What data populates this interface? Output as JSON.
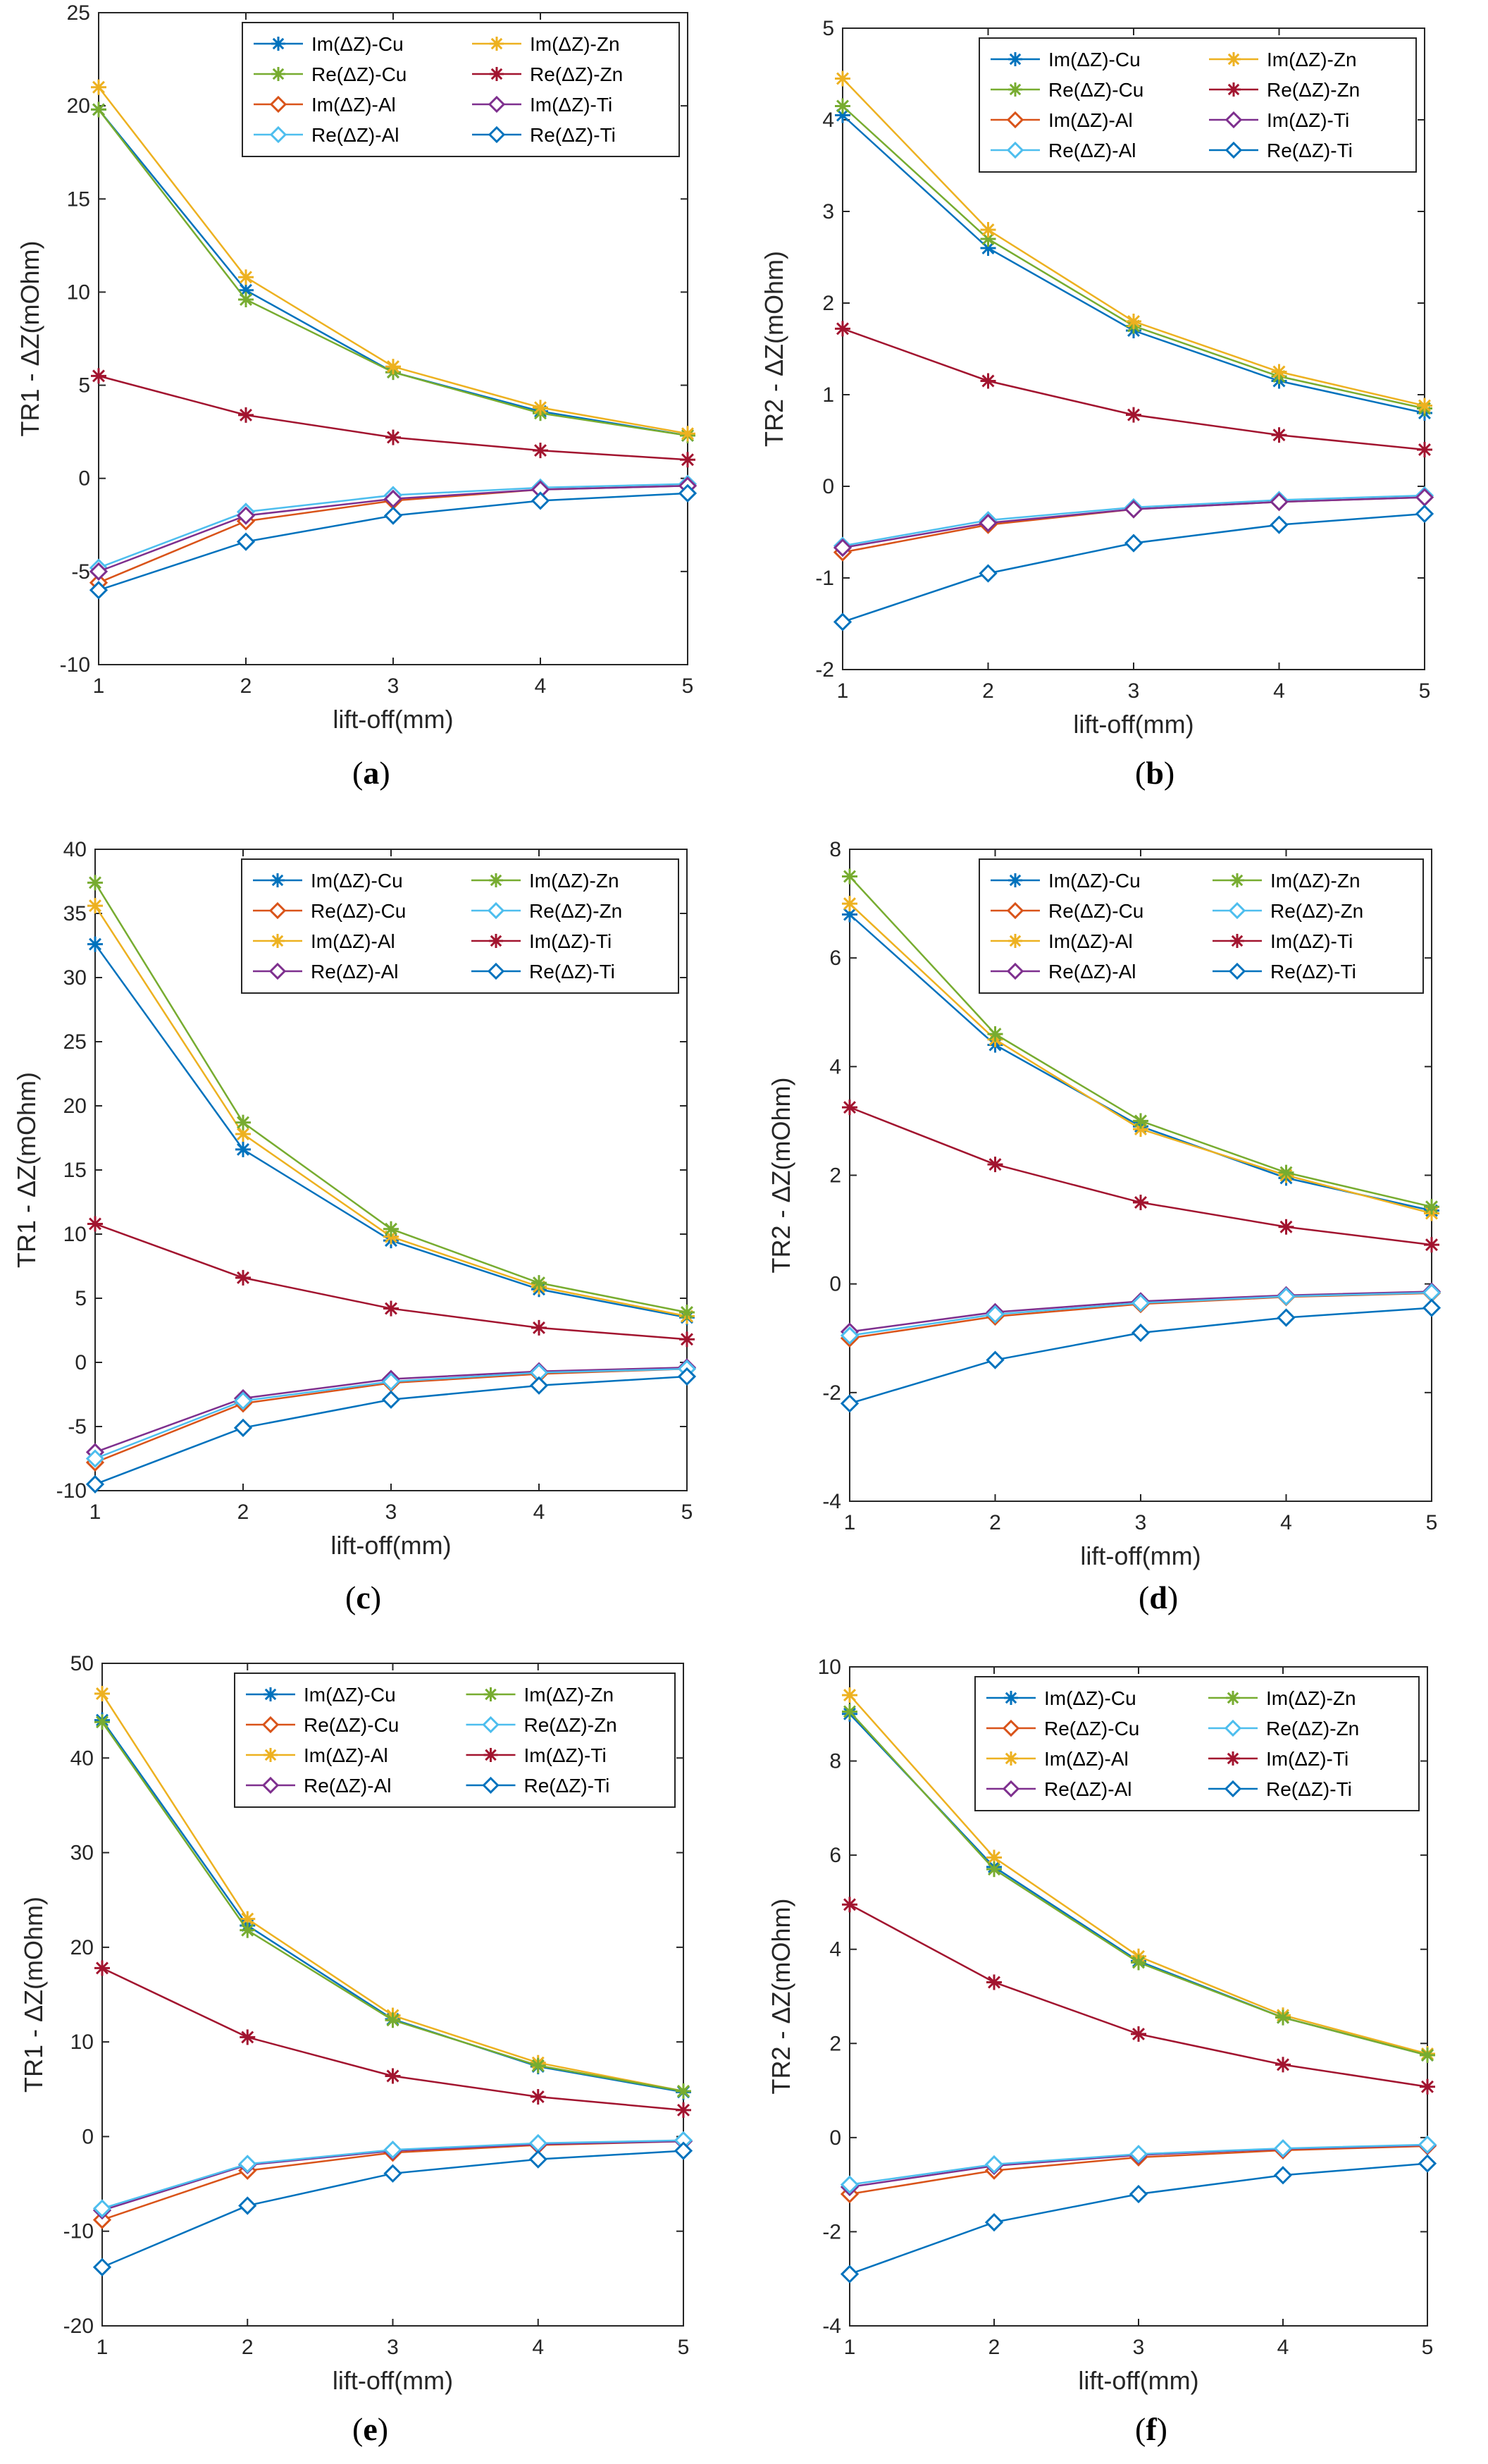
{
  "colors": {
    "c1": "#0072BD",
    "c2": "#D95319",
    "c3": "#EDB120",
    "c4": "#7E2F8E",
    "c5": "#77AC30",
    "c6": "#4DBEEE",
    "c7": "#A2142F"
  },
  "chart_data": [
    {
      "type": "line",
      "caption": "a",
      "ylabel": "TR1 - ΔZ(mOhm)",
      "xlabel": "lift-off(mm)",
      "x": [
        1,
        2,
        3,
        4,
        5
      ],
      "xlim": [
        1,
        5
      ],
      "ylim": [
        -10,
        25
      ],
      "yticks": [
        -10,
        -5,
        0,
        5,
        10,
        15,
        20,
        25
      ],
      "series": [
        {
          "name": "Im(ΔZ)-Cu",
          "color": "c1",
          "marker": "star",
          "values": [
            19.8,
            10.1,
            5.7,
            3.6,
            2.3
          ]
        },
        {
          "name": "Re(ΔZ)-Cu",
          "color": "c5",
          "marker": "star",
          "values": [
            19.8,
            9.6,
            5.7,
            3.5,
            2.3
          ]
        },
        {
          "name": "Im(ΔZ)-Al",
          "color": "c2",
          "marker": "diamond",
          "values": [
            -5.6,
            -2.3,
            -1.2,
            -0.6,
            -0.4
          ]
        },
        {
          "name": "Re(ΔZ)-Al",
          "color": "c6",
          "marker": "diamond",
          "values": [
            -4.8,
            -1.8,
            -0.9,
            -0.5,
            -0.3
          ]
        },
        {
          "name": "Im(ΔZ)-Zn",
          "color": "c3",
          "marker": "star",
          "values": [
            21.0,
            10.8,
            6.0,
            3.8,
            2.4
          ]
        },
        {
          "name": "Re(ΔZ)-Zn",
          "color": "c7",
          "marker": "star",
          "values": [
            5.5,
            3.4,
            2.2,
            1.5,
            1.0
          ]
        },
        {
          "name": "Im(ΔZ)-Ti",
          "color": "c4",
          "marker": "diamond",
          "values": [
            -5.0,
            -2.0,
            -1.1,
            -0.6,
            -0.4
          ]
        },
        {
          "name": "Re(ΔZ)-Ti",
          "color": "c1",
          "marker": "diamond",
          "values": [
            -6.0,
            -3.4,
            -2.0,
            -1.2,
            -0.8
          ]
        }
      ]
    },
    {
      "type": "line",
      "caption": "b",
      "ylabel": "TR2 - ΔZ(mOhm)",
      "xlabel": "lift-off(mm)",
      "x": [
        1,
        2,
        3,
        4,
        5
      ],
      "xlim": [
        1,
        5
      ],
      "ylim": [
        -2,
        5
      ],
      "yticks": [
        -2,
        -1,
        0,
        1,
        2,
        3,
        4,
        5
      ],
      "series": [
        {
          "name": "Im(ΔZ)-Cu",
          "color": "c1",
          "marker": "star",
          "values": [
            4.05,
            2.6,
            1.7,
            1.15,
            0.8
          ]
        },
        {
          "name": "Re(ΔZ)-Cu",
          "color": "c5",
          "marker": "star",
          "values": [
            4.15,
            2.7,
            1.75,
            1.2,
            0.85
          ]
        },
        {
          "name": "Im(ΔZ)-Al",
          "color": "c2",
          "marker": "diamond",
          "values": [
            -0.72,
            -0.42,
            -0.25,
            -0.17,
            -0.12
          ]
        },
        {
          "name": "Re(ΔZ)-Al",
          "color": "c6",
          "marker": "diamond",
          "values": [
            -0.65,
            -0.37,
            -0.23,
            -0.15,
            -0.1
          ]
        },
        {
          "name": "Im(ΔZ)-Zn",
          "color": "c3",
          "marker": "star",
          "values": [
            4.45,
            2.8,
            1.8,
            1.25,
            0.88
          ]
        },
        {
          "name": "Re(ΔZ)-Zn",
          "color": "c7",
          "marker": "star",
          "values": [
            1.72,
            1.15,
            0.78,
            0.56,
            0.4
          ]
        },
        {
          "name": "Im(ΔZ)-Ti",
          "color": "c4",
          "marker": "diamond",
          "values": [
            -0.67,
            -0.4,
            -0.25,
            -0.17,
            -0.12
          ]
        },
        {
          "name": "Re(ΔZ)-Ti",
          "color": "c1",
          "marker": "diamond",
          "values": [
            -1.48,
            -0.95,
            -0.62,
            -0.42,
            -0.3
          ]
        }
      ]
    },
    {
      "type": "line",
      "caption": "c",
      "ylabel": "TR1 - ΔZ(mOhm)",
      "xlabel": "lift-off(mm)",
      "x": [
        1,
        2,
        3,
        4,
        5
      ],
      "xlim": [
        1,
        5
      ],
      "ylim": [
        -10,
        40
      ],
      "yticks": [
        -10,
        -5,
        0,
        5,
        10,
        15,
        20,
        25,
        30,
        35,
        40
      ],
      "series": [
        {
          "name": "Im(ΔZ)-Cu",
          "color": "c1",
          "marker": "star",
          "values": [
            32.6,
            16.6,
            9.5,
            5.7,
            3.5
          ]
        },
        {
          "name": "Re(ΔZ)-Cu",
          "color": "c2",
          "marker": "diamond",
          "values": [
            -7.8,
            -3.2,
            -1.6,
            -0.9,
            -0.5
          ]
        },
        {
          "name": "Im(ΔZ)-Al",
          "color": "c3",
          "marker": "star",
          "values": [
            35.6,
            17.8,
            9.8,
            5.9,
            3.6
          ]
        },
        {
          "name": "Re(ΔZ)-Al",
          "color": "c4",
          "marker": "diamond",
          "values": [
            -7.0,
            -2.8,
            -1.3,
            -0.7,
            -0.4
          ]
        },
        {
          "name": "Im(ΔZ)-Zn",
          "color": "c5",
          "marker": "star",
          "values": [
            37.4,
            18.7,
            10.4,
            6.2,
            3.9
          ]
        },
        {
          "name": "Re(ΔZ)-Zn",
          "color": "c6",
          "marker": "diamond",
          "values": [
            -7.5,
            -3.0,
            -1.5,
            -0.8,
            -0.5
          ]
        },
        {
          "name": "Im(ΔZ)-Ti",
          "color": "c7",
          "marker": "star",
          "values": [
            10.8,
            6.6,
            4.2,
            2.7,
            1.8
          ]
        },
        {
          "name": "Re(ΔZ)-Ti",
          "color": "c1",
          "marker": "diamond",
          "values": [
            -9.5,
            -5.1,
            -2.9,
            -1.8,
            -1.1
          ]
        }
      ]
    },
    {
      "type": "line",
      "caption": "d",
      "ylabel": "TR2 - ΔZ(mOhm)",
      "xlabel": "lift-off(mm)",
      "x": [
        1,
        2,
        3,
        4,
        5
      ],
      "xlim": [
        1,
        5
      ],
      "ylim": [
        -4,
        8
      ],
      "yticks": [
        -4,
        -2,
        0,
        2,
        4,
        6,
        8
      ],
      "series": [
        {
          "name": "Im(ΔZ)-Cu",
          "color": "c1",
          "marker": "star",
          "values": [
            6.8,
            4.4,
            2.9,
            1.95,
            1.35
          ]
        },
        {
          "name": "Re(ΔZ)-Cu",
          "color": "c2",
          "marker": "diamond",
          "values": [
            -1.0,
            -0.6,
            -0.37,
            -0.24,
            -0.17
          ]
        },
        {
          "name": "Im(ΔZ)-Al",
          "color": "c3",
          "marker": "star",
          "values": [
            7.0,
            4.5,
            2.85,
            2.0,
            1.3
          ]
        },
        {
          "name": "Re(ΔZ)-Al",
          "color": "c4",
          "marker": "diamond",
          "values": [
            -0.88,
            -0.52,
            -0.32,
            -0.21,
            -0.14
          ]
        },
        {
          "name": "Im(ΔZ)-Zn",
          "color": "c5",
          "marker": "star",
          "values": [
            7.5,
            4.6,
            3.0,
            2.05,
            1.42
          ]
        },
        {
          "name": "Re(ΔZ)-Zn",
          "color": "c6",
          "marker": "diamond",
          "values": [
            -0.95,
            -0.56,
            -0.35,
            -0.23,
            -0.16
          ]
        },
        {
          "name": "Im(ΔZ)-Ti",
          "color": "c7",
          "marker": "star",
          "values": [
            3.25,
            2.2,
            1.5,
            1.05,
            0.72
          ]
        },
        {
          "name": "Re(ΔZ)-Ti",
          "color": "c1",
          "marker": "diamond",
          "values": [
            -2.2,
            -1.4,
            -0.9,
            -0.62,
            -0.44
          ]
        }
      ]
    },
    {
      "type": "line",
      "caption": "e",
      "ylabel": "TR1 - ΔZ(mOhm)",
      "xlabel": "lift-off(mm)",
      "x": [
        1,
        2,
        3,
        4,
        5
      ],
      "xlim": [
        1,
        5
      ],
      "ylim": [
        -20,
        50
      ],
      "yticks": [
        -20,
        -10,
        0,
        10,
        20,
        30,
        40,
        50
      ],
      "series": [
        {
          "name": "Im(ΔZ)-Cu",
          "color": "c1",
          "marker": "star",
          "values": [
            44.0,
            22.3,
            12.4,
            7.4,
            4.7
          ]
        },
        {
          "name": "Re(ΔZ)-Cu",
          "color": "c2",
          "marker": "diamond",
          "values": [
            -8.8,
            -3.6,
            -1.7,
            -0.9,
            -0.5
          ]
        },
        {
          "name": "Im(ΔZ)-Al",
          "color": "c3",
          "marker": "star",
          "values": [
            46.8,
            23.0,
            12.8,
            7.8,
            4.8
          ]
        },
        {
          "name": "Re(ΔZ)-Al",
          "color": "c4",
          "marker": "diamond",
          "values": [
            -7.8,
            -3.0,
            -1.5,
            -0.8,
            -0.5
          ]
        },
        {
          "name": "Im(ΔZ)-Zn",
          "color": "c5",
          "marker": "star",
          "values": [
            43.8,
            21.8,
            12.3,
            7.5,
            4.8
          ]
        },
        {
          "name": "Re(ΔZ)-Zn",
          "color": "c6",
          "marker": "diamond",
          "values": [
            -7.6,
            -2.9,
            -1.4,
            -0.7,
            -0.4
          ]
        },
        {
          "name": "Im(ΔZ)-Ti",
          "color": "c7",
          "marker": "star",
          "values": [
            17.8,
            10.5,
            6.4,
            4.2,
            2.8
          ]
        },
        {
          "name": "Re(ΔZ)-Ti",
          "color": "c1",
          "marker": "diamond",
          "values": [
            -13.8,
            -7.3,
            -3.9,
            -2.4,
            -1.5
          ]
        }
      ]
    },
    {
      "type": "line",
      "caption": "f",
      "ylabel": "TR2 - ΔZ(mOhm)",
      "xlabel": "lift-off(mm)",
      "x": [
        1,
        2,
        3,
        4,
        5
      ],
      "xlim": [
        1,
        5
      ],
      "ylim": [
        -4,
        10
      ],
      "yticks": [
        -4,
        -2,
        0,
        2,
        4,
        6,
        8,
        10
      ],
      "series": [
        {
          "name": "Im(ΔZ)-Cu",
          "color": "c1",
          "marker": "star",
          "values": [
            9.0,
            5.75,
            3.75,
            2.55,
            1.75
          ]
        },
        {
          "name": "Re(ΔZ)-Cu",
          "color": "c2",
          "marker": "diamond",
          "values": [
            -1.2,
            -0.7,
            -0.42,
            -0.27,
            -0.18
          ]
        },
        {
          "name": "Im(ΔZ)-Al",
          "color": "c3",
          "marker": "star",
          "values": [
            9.4,
            5.95,
            3.85,
            2.6,
            1.78
          ]
        },
        {
          "name": "Re(ΔZ)-Al",
          "color": "c4",
          "marker": "diamond",
          "values": [
            -1.05,
            -0.6,
            -0.37,
            -0.24,
            -0.16
          ]
        },
        {
          "name": "Im(ΔZ)-Zn",
          "color": "c5",
          "marker": "star",
          "values": [
            9.05,
            5.7,
            3.72,
            2.55,
            1.75
          ]
        },
        {
          "name": "Re(ΔZ)-Zn",
          "color": "c6",
          "marker": "diamond",
          "values": [
            -1.0,
            -0.57,
            -0.35,
            -0.23,
            -0.15
          ]
        },
        {
          "name": "Im(ΔZ)-Ti",
          "color": "c7",
          "marker": "star",
          "values": [
            4.95,
            3.3,
            2.2,
            1.55,
            1.08
          ]
        },
        {
          "name": "Re(ΔZ)-Ti",
          "color": "c1",
          "marker": "diamond",
          "values": [
            -2.9,
            -1.8,
            -1.2,
            -0.8,
            -0.55
          ]
        }
      ]
    }
  ]
}
